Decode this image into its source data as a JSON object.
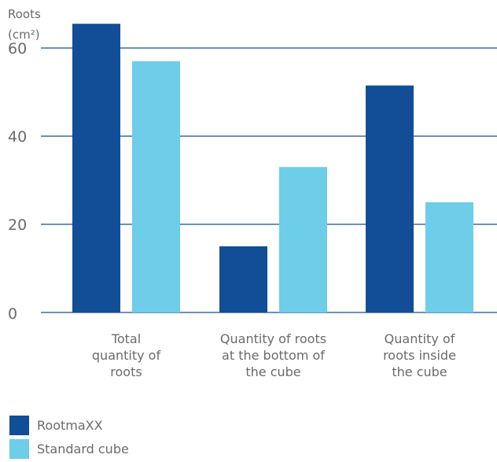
{
  "chart_data": {
    "type": "bar",
    "ylabel_lines": [
      "Roots",
      "(cm²)"
    ],
    "categories": [
      [
        "Total",
        "quantity of",
        "roots"
      ],
      [
        "Quantity of roots",
        "at the bottom of",
        "the cube"
      ],
      [
        "Quantity of",
        "roots inside",
        "the cube"
      ]
    ],
    "series": [
      {
        "name": "RootmaXX",
        "values": [
          65.5,
          15,
          51.5
        ],
        "color": "#114e97"
      },
      {
        "name": "Standard cube",
        "values": [
          57,
          33,
          25
        ],
        "color": "#6ecde9"
      }
    ],
    "yticks": [
      0,
      20,
      40,
      60
    ],
    "ylim": [
      0,
      70
    ],
    "grid": true,
    "legend_position": "bottom-left"
  }
}
